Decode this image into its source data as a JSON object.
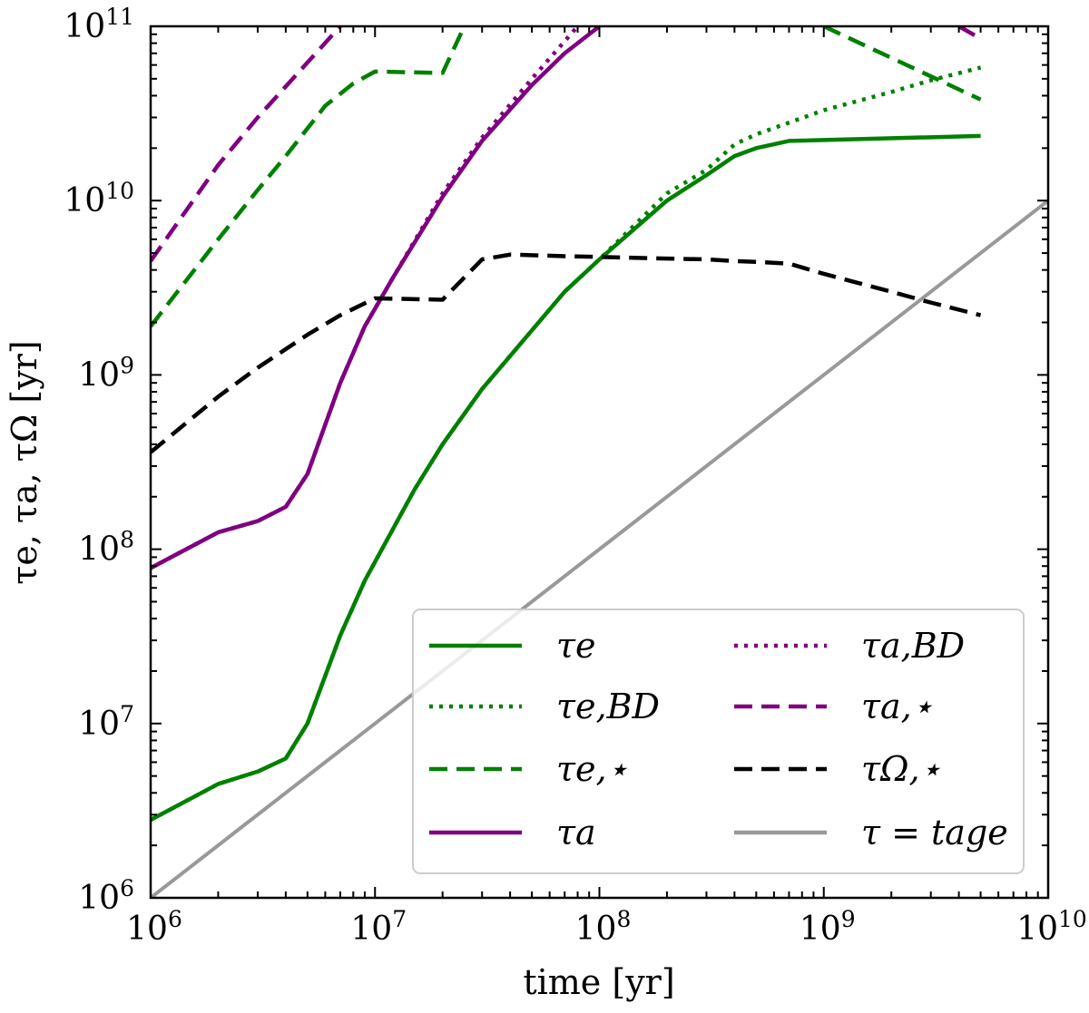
{
  "chart_data": {
    "type": "line",
    "xscale": "log",
    "yscale": "log",
    "xlabel": "time [yr]",
    "ylabel": "τe, τa, τΩ [yr]",
    "xlim": [
      1000000,
      10000000000
    ],
    "ylim": [
      1000000,
      100000000000
    ],
    "x_ticks": [
      {
        "base": "10",
        "exp": "6"
      },
      {
        "base": "10",
        "exp": "7"
      },
      {
        "base": "10",
        "exp": "8"
      },
      {
        "base": "10",
        "exp": "9"
      },
      {
        "base": "10",
        "exp": "10"
      }
    ],
    "y_ticks": [
      {
        "base": "10",
        "exp": "6"
      },
      {
        "base": "10",
        "exp": "7"
      },
      {
        "base": "10",
        "exp": "8"
      },
      {
        "base": "10",
        "exp": "9"
      },
      {
        "base": "10",
        "exp": "10"
      },
      {
        "base": "10",
        "exp": "11"
      }
    ],
    "legend_position": "bottom-right",
    "series": [
      {
        "name": "τe",
        "color": "#008000",
        "dash": "solid",
        "x": [
          1000000.0,
          2000000.0,
          3000000.0,
          4000000.0,
          5000000.0,
          7000000.0,
          9000000.0,
          15000000.0,
          20000000.0,
          30000000.0,
          50000000.0,
          70000000.0,
          100000000.0,
          200000000.0,
          300000000.0,
          400000000.0,
          500000000.0,
          700000000.0,
          5000000000.0
        ],
        "y": [
          2800000.0,
          4500000.0,
          5300000.0,
          6300000.0,
          10000000.0,
          32000000.0,
          66000000.0,
          220000000.0,
          400000000.0,
          830000000.0,
          1800000000.0,
          3000000000.0,
          4600000000.0,
          10000000000.0,
          14000000000.0,
          18000000000.0,
          20000000000.0,
          22000000000.0,
          23500000000.0
        ]
      },
      {
        "name": "τe,BD",
        "color": "#008000",
        "dash": "dotted",
        "x": [
          1000000.0,
          2000000.0,
          3000000.0,
          4000000.0,
          5000000.0,
          7000000.0,
          9000000.0,
          15000000.0,
          20000000.0,
          30000000.0,
          50000000.0,
          70000000.0,
          100000000.0,
          200000000.0,
          300000000.0,
          400000000.0,
          500000000.0,
          700000000.0,
          1000000000.0,
          2000000000.0,
          3000000000.0,
          5000000000.0
        ],
        "y": [
          2800000.0,
          4500000.0,
          5300000.0,
          6300000.0,
          10000000.0,
          32000000.0,
          66000000.0,
          220000000.0,
          400000000.0,
          830000000.0,
          1800000000.0,
          3000000000.0,
          4600000000.0,
          11000000000.0,
          15000000000.0,
          21000000000.0,
          24000000000.0,
          28000000000.0,
          33000000000.0,
          42000000000.0,
          49000000000.0,
          58000000000.0
        ]
      },
      {
        "name": "τe,⋆",
        "color": "#008000",
        "dash": "dashed",
        "x": [
          1000000.0,
          2000000.0,
          3000000.0,
          4000000.0,
          6000000.0,
          8000000.0,
          10000000.0,
          20000000.0,
          25000000.0
        ],
        "y": [
          1900000000.0,
          6000000000.0,
          11500000000.0,
          18000000000.0,
          35000000000.0,
          47000000000.0,
          55000000000.0,
          54000000000.0,
          100000000000.0
        ],
        "x2": [
          1000000000.0,
          5000000000.0
        ],
        "y2": [
          100000000000.0,
          38000000000.0
        ]
      },
      {
        "name": "τa",
        "color": "#800080",
        "dash": "solid",
        "x": [
          1000000.0,
          2000000.0,
          3000000.0,
          4000000.0,
          5000000.0,
          7000000.0,
          9000000.0,
          12000000.0,
          20000000.0,
          30000000.0,
          50000000.0,
          70000000.0,
          100000000.0
        ],
        "y": [
          78000000.0,
          125000000.0,
          145000000.0,
          175000000.0,
          270000000.0,
          900000000.0,
          1900000000.0,
          3600000000.0,
          10500000000.0,
          22000000000.0,
          46000000000.0,
          70000000000.0,
          100000000000.0
        ]
      },
      {
        "name": "τa,BD",
        "color": "#800080",
        "dash": "dotted",
        "x": [
          1000000.0,
          2000000.0,
          3000000.0,
          4000000.0,
          5000000.0,
          7000000.0,
          9000000.0,
          12000000.0,
          20000000.0,
          30000000.0,
          50000000.0,
          80000000.0
        ],
        "y": [
          78000000.0,
          125000000.0,
          145000000.0,
          175000000.0,
          270000000.0,
          900000000.0,
          1900000000.0,
          3600000000.0,
          11000000000.0,
          23000000000.0,
          50000000000.0,
          100000000000.0
        ]
      },
      {
        "name": "τa,⋆",
        "color": "#800080",
        "dash": "dashed",
        "x": [
          1000000.0,
          2000000.0,
          3000000.0,
          5000000.0,
          7000000.0
        ],
        "y": [
          4500000000.0,
          16000000000.0,
          30000000000.0,
          62000000000.0,
          100000000000.0
        ],
        "x2": [
          4000000000.0,
          5000000000.0
        ],
        "y2": [
          100000000000.0,
          85000000000.0
        ]
      },
      {
        "name": "τΩ,⋆",
        "color": "#000000",
        "dash": "dashed",
        "x": [
          1000000.0,
          2000000.0,
          3000000.0,
          5000000.0,
          7000000.0,
          10000000.0,
          20000000.0,
          30000000.0,
          40000000.0,
          70000000.0,
          100000000.0,
          200000000.0,
          300000000.0,
          400000000.0,
          500000000.0,
          700000000.0,
          1000000000.0,
          2000000000.0,
          3000000000.0,
          5000000000.0
        ],
        "y": [
          360000000.0,
          750000000.0,
          1100000000.0,
          1700000000.0,
          2200000000.0,
          2750000000.0,
          2700000000.0,
          4600000000.0,
          4900000000.0,
          4800000000.0,
          4750000000.0,
          4650000000.0,
          4600000000.0,
          4500000000.0,
          4450000000.0,
          4350000000.0,
          3800000000.0,
          3000000000.0,
          2600000000.0,
          2200000000.0
        ]
      },
      {
        "name": "τ = tage",
        "color": "#999999",
        "dash": "solid",
        "x": [
          1000000.0,
          10000000000.0
        ],
        "y": [
          1000000.0,
          10000000000.0
        ]
      }
    ],
    "legend": [
      {
        "label": "τe",
        "series": 0
      },
      {
        "label": "τe,BD",
        "series": 1
      },
      {
        "label": "τe,⋆",
        "series": 2
      },
      {
        "label": "τa",
        "series": 3
      },
      {
        "label": "τa,BD",
        "series": 4
      },
      {
        "label": "τa,⋆",
        "series": 5
      },
      {
        "label": "τΩ,⋆",
        "series": 6
      },
      {
        "label": "τ = tage",
        "series": 7
      }
    ]
  }
}
